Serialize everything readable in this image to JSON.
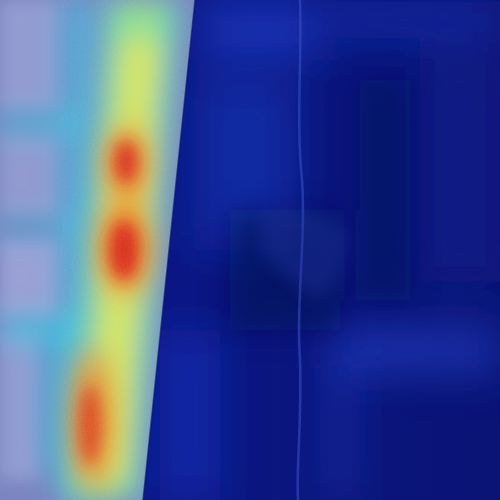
{
  "image": {
    "kind": "heatmap-overlay-photo",
    "colormap": "jet",
    "colors": {
      "left_panel_base": "#7b86c0",
      "right_panel_base": "#0c1888",
      "right_panel_dark": "#071060",
      "cyan_halo": "#3fd0e6",
      "light_blue": "#5fa6ee",
      "yellow": "#f2e24a",
      "orange": "#ef8a2a",
      "red": "#d8231c",
      "pale_grid": "#a8aee0"
    },
    "hotspots": [
      {
        "name": "upper-hotspot",
        "intensity": 0.85
      },
      {
        "name": "middle-hotspot",
        "intensity": 1.0
      },
      {
        "name": "lower-hotspot",
        "intensity": 0.9
      }
    ]
  }
}
